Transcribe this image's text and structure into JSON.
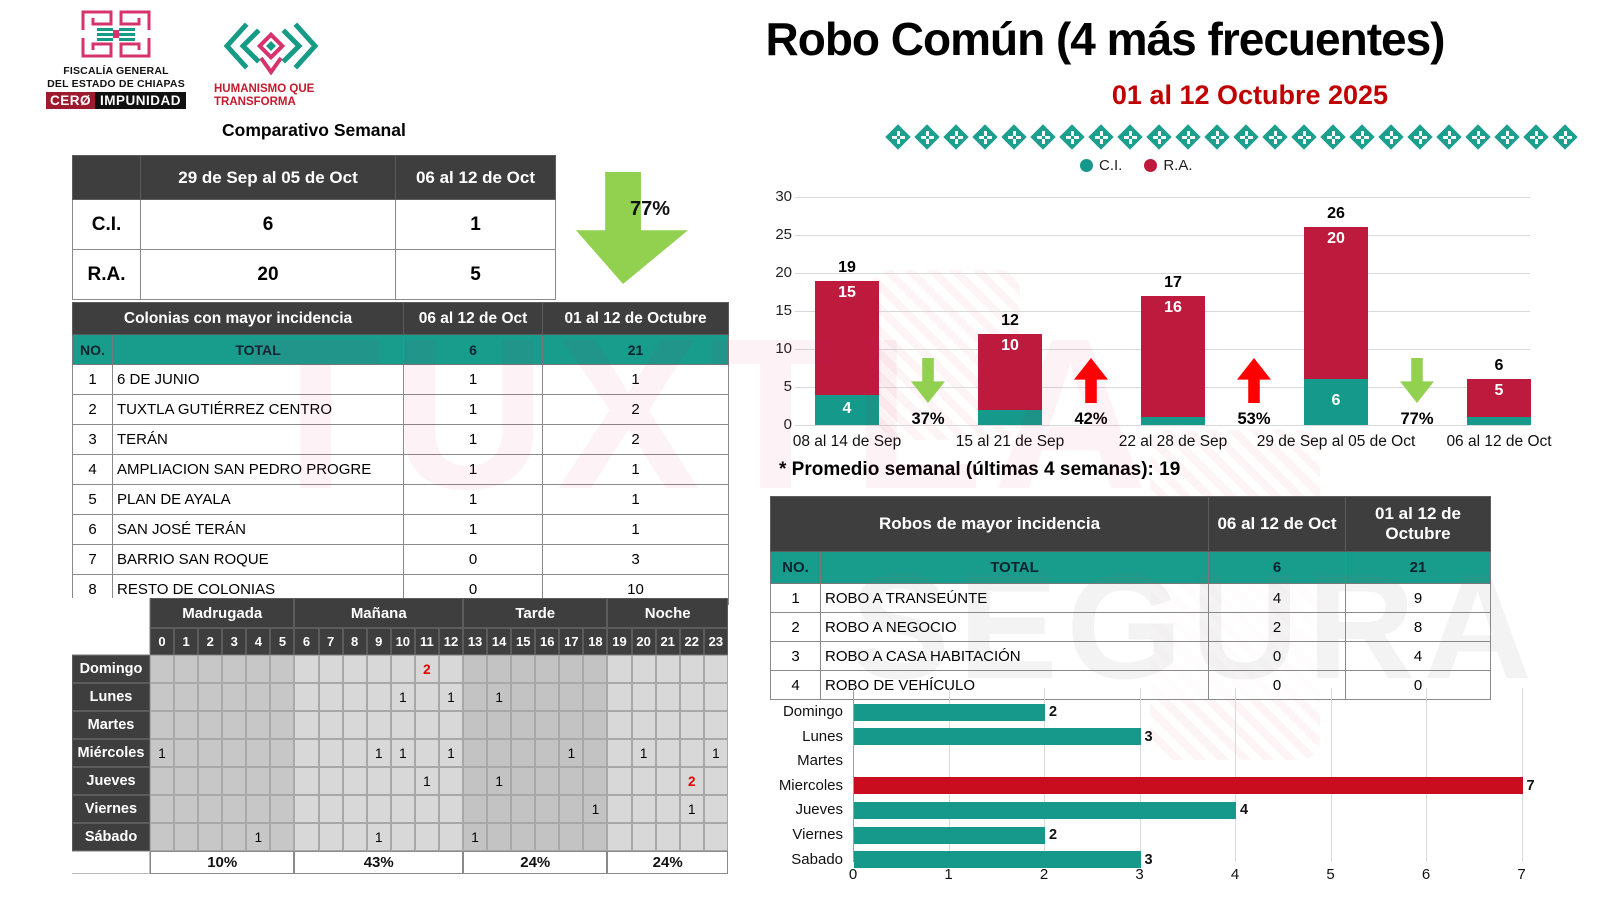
{
  "header": {
    "fge_logo": {
      "line1": "FISCALÍA GENERAL",
      "line2": "DEL ESTADO DE CHIAPAS",
      "badge_left": "CERØ",
      "badge_right": "IMPUNIDAD"
    },
    "hqt_logo": {
      "line1": "HUMANISMO QUE",
      "line2": "TRANSFORMA"
    },
    "title": "Robo Común (4 más frecuentes)",
    "subtitle": "01 al 12 Octubre 2025"
  },
  "watermarks": {
    "left": "TUXTLA",
    "right": "SEGURA"
  },
  "comparativo": {
    "heading": "Comparativo Semanal",
    "col1": "29 de Sep al 05 de Oct",
    "col2": "06 al 12 de Oct",
    "rows": [
      {
        "label": "C.I.",
        "v1": "6",
        "v2": "1"
      },
      {
        "label": "R.A.",
        "v1": "20",
        "v2": "5"
      }
    ],
    "change_pct": "77%",
    "change_direction": "down"
  },
  "colonias": {
    "title": "Colonias con mayor incidencia",
    "col1": "06 al 12 de Oct",
    "col2": "01 al 12 de Octubre",
    "no_label": "NO.",
    "total_label": "TOTAL",
    "total1": "6",
    "total2": "21",
    "rows": [
      {
        "no": "1",
        "name": "6 DE JUNIO",
        "v1": "1",
        "v2": "1"
      },
      {
        "no": "2",
        "name": "TUXTLA GUTIÉRREZ CENTRO",
        "v1": "1",
        "v2": "2"
      },
      {
        "no": "3",
        "name": "TERÁN",
        "v1": "1",
        "v2": "2"
      },
      {
        "no": "4",
        "name": "AMPLIACION SAN PEDRO PROGRE",
        "v1": "1",
        "v2": "1"
      },
      {
        "no": "5",
        "name": "PLAN DE AYALA",
        "v1": "1",
        "v2": "1"
      },
      {
        "no": "6",
        "name": "SAN JOSÉ TERÁN",
        "v1": "1",
        "v2": "1"
      },
      {
        "no": "7",
        "name": "BARRIO SAN ROQUE",
        "v1": "0",
        "v2": "3"
      },
      {
        "no": "8",
        "name": "RESTO DE COLONIAS",
        "v1": "0",
        "v2": "10"
      }
    ]
  },
  "heatmap": {
    "hours": [
      0,
      1,
      2,
      3,
      4,
      5,
      6,
      7,
      8,
      9,
      10,
      11,
      12,
      13,
      14,
      15,
      16,
      17,
      18,
      19,
      20,
      21,
      22,
      23
    ],
    "periods": [
      {
        "label": "Madrugada",
        "from": 0,
        "to": 5,
        "pct": "10%"
      },
      {
        "label": "Mañana",
        "from": 6,
        "to": 12,
        "pct": "43%"
      },
      {
        "label": "Tarde",
        "from": 13,
        "to": 18,
        "pct": "24%"
      },
      {
        "label": "Noche",
        "from": 19,
        "to": 23,
        "pct": "24%"
      }
    ],
    "days": [
      {
        "day": "Domingo",
        "cells": [
          {
            "hour": 11,
            "value": 2,
            "highlight": true
          }
        ]
      },
      {
        "day": "Lunes",
        "cells": [
          {
            "hour": 10,
            "value": 1
          },
          {
            "hour": 12,
            "value": 1
          },
          {
            "hour": 14,
            "value": 1
          }
        ]
      },
      {
        "day": "Martes",
        "cells": []
      },
      {
        "day": "Miércoles",
        "cells": [
          {
            "hour": 0,
            "value": 1
          },
          {
            "hour": 9,
            "value": 1
          },
          {
            "hour": 10,
            "value": 1
          },
          {
            "hour": 12,
            "value": 1
          },
          {
            "hour": 17,
            "value": 1
          },
          {
            "hour": 20,
            "value": 1
          },
          {
            "hour": 23,
            "value": 1
          }
        ]
      },
      {
        "day": "Jueves",
        "cells": [
          {
            "hour": 11,
            "value": 1
          },
          {
            "hour": 14,
            "value": 1
          },
          {
            "hour": 22,
            "value": 2,
            "highlight": true
          }
        ]
      },
      {
        "day": "Viernes",
        "cells": [
          {
            "hour": 18,
            "value": 1
          },
          {
            "hour": 22,
            "value": 1
          }
        ]
      },
      {
        "day": "Sábado",
        "cells": [
          {
            "hour": 4,
            "value": 1
          },
          {
            "hour": 9,
            "value": 1
          },
          {
            "hour": 13,
            "value": 1
          }
        ]
      }
    ]
  },
  "chart_data": [
    {
      "type": "bar",
      "stacked": true,
      "title": "",
      "categories": [
        "08 al 14 de Sep",
        "15 al 21 de Sep",
        "22 al 28 de Sep",
        "29 de Sep al 05 de Oct",
        "06 al 12 de Oct"
      ],
      "series": [
        {
          "name": "C.I.",
          "color": "#14998a",
          "values": [
            4,
            2,
            1,
            6,
            1
          ]
        },
        {
          "name": "R.A.",
          "color": "#bd1a3e",
          "values": [
            15,
            10,
            16,
            20,
            5
          ]
        }
      ],
      "totals": [
        19,
        12,
        17,
        26,
        6
      ],
      "ci_label_shown": [
        true,
        false,
        false,
        true,
        false
      ],
      "changes": [
        {
          "pct": "37%",
          "direction": "down"
        },
        {
          "pct": "42%",
          "direction": "up"
        },
        {
          "pct": "53%",
          "direction": "up"
        },
        {
          "pct": "77%",
          "direction": "down"
        }
      ],
      "ylim": [
        0,
        30
      ],
      "yticks": [
        0,
        5,
        10,
        15,
        20,
        25,
        30
      ],
      "legend_position": "top",
      "grid": true
    },
    {
      "type": "bar",
      "orientation": "horizontal",
      "categories": [
        "Domingo",
        "Lunes",
        "Martes",
        "Miercoles",
        "Jueves",
        "Viernes",
        "Sabado"
      ],
      "values": [
        2,
        3,
        0,
        7,
        4,
        2,
        3
      ],
      "bar_colors": [
        "#16998a",
        "#16998a",
        "#16998a",
        "#c90d1f",
        "#16998a",
        "#16998a",
        "#16998a"
      ],
      "xlim": [
        0,
        7
      ],
      "xticks": [
        0,
        1,
        2,
        3,
        4,
        5,
        6,
        7
      ],
      "grid": true
    }
  ],
  "promedio_note": "* Promedio semanal (últimas 4 semanas): 19",
  "robos": {
    "title": "Robos de mayor incidencia",
    "col1": "06 al 12 de Oct",
    "col2": "01 al 12 de Octubre",
    "no_label": "NO.",
    "total_label": "TOTAL",
    "total1": "6",
    "total2": "21",
    "rows": [
      {
        "no": "1",
        "name": "ROBO A TRANSEÚNTE",
        "v1": "4",
        "v2": "9"
      },
      {
        "no": "2",
        "name": "ROBO A NEGOCIO",
        "v1": "2",
        "v2": "8"
      },
      {
        "no": "3",
        "name": "ROBO A CASA HABITACIÓN",
        "v1": "0",
        "v2": "4"
      },
      {
        "no": "4",
        "name": "ROBO DE VEHÍCULO",
        "v1": "0",
        "v2": "0"
      }
    ]
  },
  "colors": {
    "teal": "#16998a",
    "crimson": "#bd1a3e",
    "bright_red": "#c90d1f",
    "arrow_up": "#fe0000",
    "arrow_down": "#92d050",
    "header_dark": "#3e3e3e",
    "teal_row": "#189c8c",
    "subtitle_red": "#c00000"
  }
}
